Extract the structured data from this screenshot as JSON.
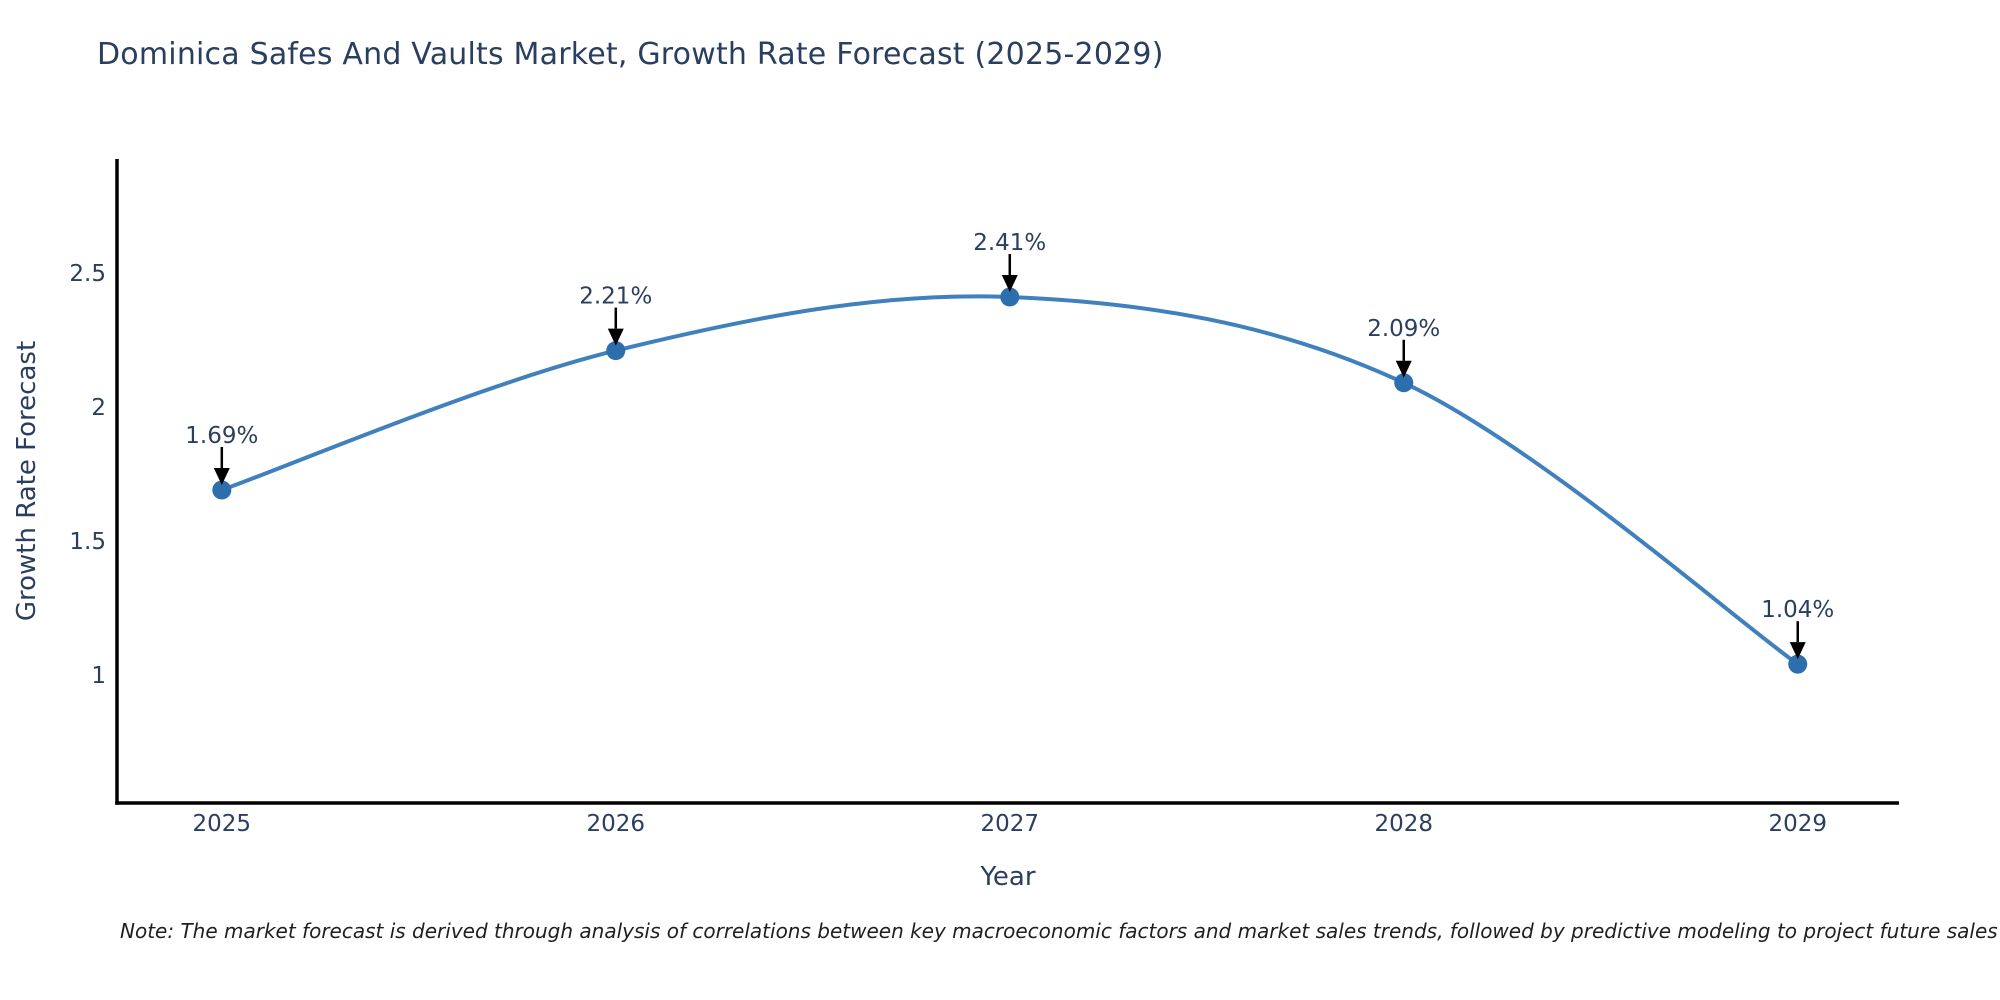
{
  "note": "Note: The market forecast is derived through analysis of correlations between key macroeconomic factors and market sales trends, followed by predictive modeling to project future sales",
  "chart_data": {
    "type": "line",
    "title": "Dominica Safes And Vaults Market, Growth Rate Forecast (2025-2029)",
    "xlabel": "Year",
    "ylabel": "Growth Rate Forecast",
    "x": [
      2025,
      2026,
      2027,
      2028,
      2029
    ],
    "values": [
      1.69,
      2.21,
      2.41,
      2.09,
      1.04
    ],
    "point_labels": [
      "1.69%",
      "2.21%",
      "2.41%",
      "2.09%",
      "1.04%"
    ],
    "x_tick_labels": [
      "2025",
      "2026",
      "2027",
      "2028",
      "2029"
    ],
    "y_tick_values": [
      1,
      1.5,
      2,
      2.5
    ],
    "y_tick_labels": [
      "1",
      "1.5",
      "2",
      "2.5"
    ],
    "xlim_years": [
      2024.734,
      2029.257
    ],
    "ylim": [
      0.522,
      2.925
    ],
    "grid": false,
    "legend": "none",
    "line_shape": "spline",
    "marker": "circle",
    "annotation_arrows": true,
    "colors": {
      "line": "#4080bd",
      "marker": "#2d6fad",
      "axis": "#000000",
      "text": "#2a3f5f",
      "note_text": "#1f1f1f",
      "background": "#ffffff"
    }
  }
}
